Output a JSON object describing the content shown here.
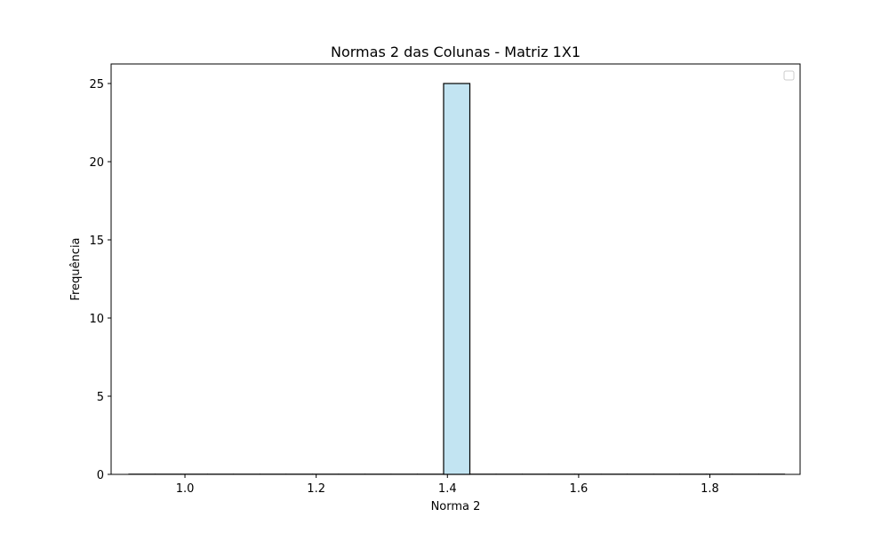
{
  "chart_data": {
    "type": "bar",
    "title": "Normas 2 das Colunas - Matriz 1X1",
    "xlabel": "Norma 2",
    "ylabel": "Frequência",
    "xlim": [
      0.8875,
      1.9375
    ],
    "ylim": [
      0,
      26.25
    ],
    "x_ticks": [
      1.0,
      1.2,
      1.4,
      1.6,
      1.8
    ],
    "x_tick_labels": [
      "1.0",
      "1.2",
      "1.4",
      "1.6",
      "1.8"
    ],
    "y_ticks": [
      0,
      5,
      10,
      15,
      20,
      25
    ],
    "y_tick_labels": [
      "0",
      "5",
      "10",
      "15",
      "20",
      "25"
    ],
    "bin_range": [
      0.9142,
      1.9142
    ],
    "bin_count": 25,
    "bars": [
      {
        "x0": 1.3742,
        "x1": 1.4142,
        "value": 25
      }
    ],
    "grid": false,
    "legend": {
      "position": "top-right",
      "entries": []
    },
    "colors": {
      "bar_fill": "#c2e4f2",
      "bar_edge": "#000000",
      "axes": "#000000",
      "background": "#ffffff"
    }
  }
}
